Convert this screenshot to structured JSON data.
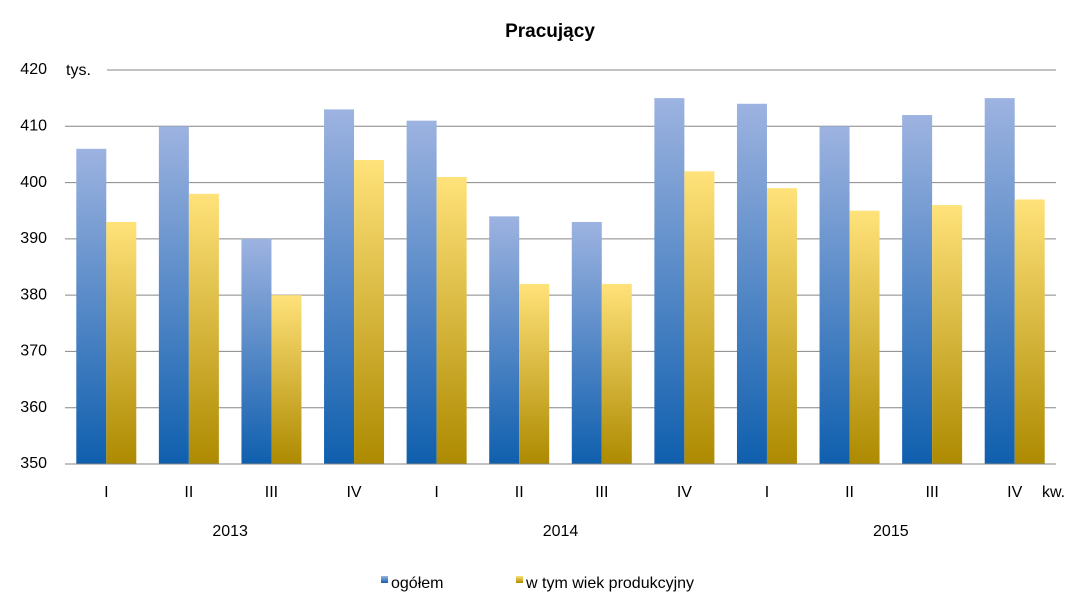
{
  "chart_data": {
    "type": "bar",
    "title": "Pracujący",
    "y_unit": "tys.",
    "x_unit": "kw.",
    "categories": [
      "I",
      "II",
      "III",
      "IV",
      "I",
      "II",
      "III",
      "IV",
      "I",
      "II",
      "III",
      "IV"
    ],
    "year_groups": [
      "2013",
      "2014",
      "2015"
    ],
    "series": [
      {
        "name": "ogółem",
        "color": "#4f81bd",
        "values": [
          406,
          410,
          390,
          413,
          411,
          394,
          393,
          415,
          414,
          410,
          412,
          415
        ]
      },
      {
        "name": "w tym wiek produkcyjny",
        "color": "#e6b800",
        "values": [
          393,
          398,
          380,
          404,
          401,
          382,
          382,
          402,
          399,
          395,
          396,
          397
        ]
      }
    ],
    "ylim": [
      350,
      420
    ],
    "yticks": [
      350,
      360,
      370,
      380,
      390,
      400,
      410,
      420
    ],
    "grid": true
  }
}
